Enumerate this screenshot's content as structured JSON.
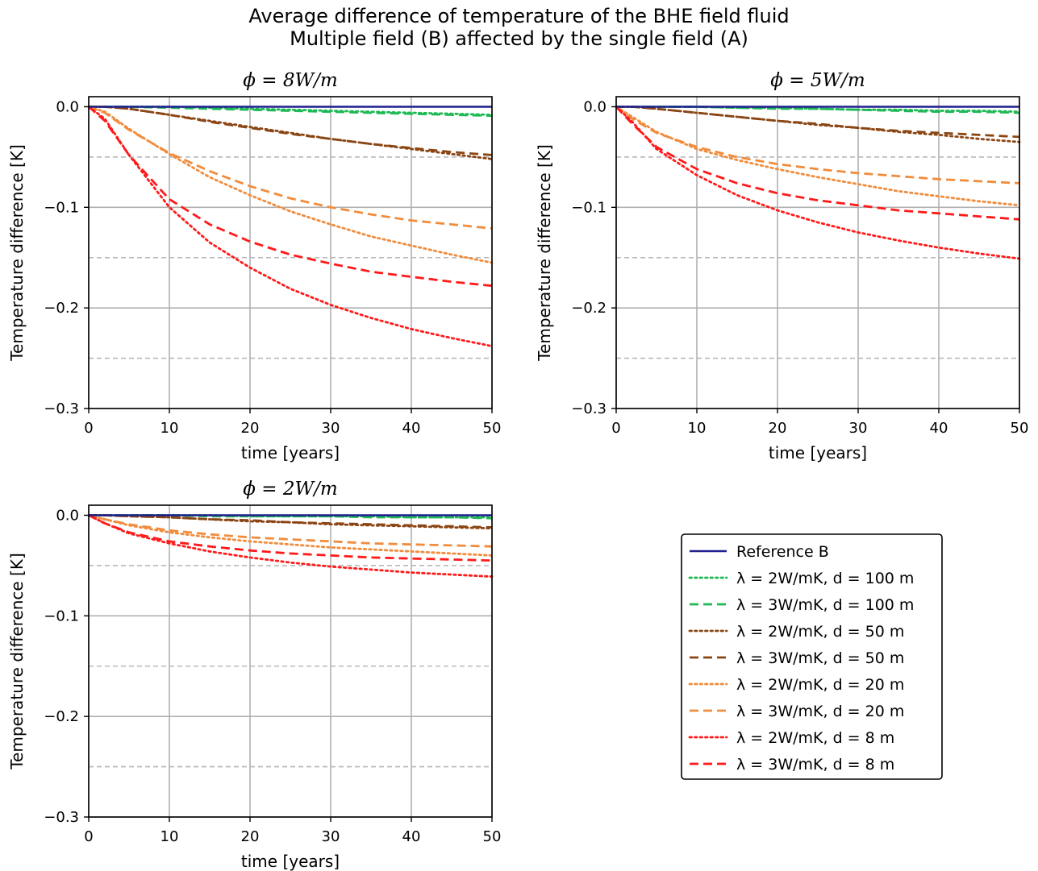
{
  "figure": {
    "title_line1": "Average difference of temperature of the BHE field fluid",
    "title_line2": "Multiple field (B) affected by the single field (A)"
  },
  "colors": {
    "reference": "#1f1f8f",
    "green": "#1db954",
    "brown": "#8b4513",
    "orange": "#f08c3c",
    "red": "#ff1a1a",
    "grid": "#b0b0b0",
    "dashed_ref": "#b8b8b8"
  },
  "legend": {
    "entries": [
      {
        "label": "Reference B",
        "color": "#1f1f8f",
        "style": "solid"
      },
      {
        "label": "λ = 2W/mK, d = 100 m",
        "color": "#1db954",
        "style": "dotted"
      },
      {
        "label": "λ = 3W/mK, d = 100 m",
        "color": "#1db954",
        "style": "dashed"
      },
      {
        "label": "λ = 2W/mK, d = 50 m",
        "color": "#8b4513",
        "style": "dotted"
      },
      {
        "label": "λ = 3W/mK, d = 50 m",
        "color": "#8b4513",
        "style": "dashed"
      },
      {
        "label": "λ = 2W/mK, d = 20 m",
        "color": "#f08c3c",
        "style": "dotted"
      },
      {
        "label": "λ = 3W/mK, d = 20 m",
        "color": "#f08c3c",
        "style": "dashed"
      },
      {
        "label": "λ = 2W/mK, d = 8 m",
        "color": "#ff1a1a",
        "style": "dotted"
      },
      {
        "label": "λ = 3W/mK, d = 8 m",
        "color": "#ff1a1a",
        "style": "dashed"
      }
    ]
  },
  "chart_data": [
    {
      "type": "line",
      "title": "ϕ = 8W/m",
      "xlabel": "time [years]",
      "ylabel": "Temperature difference [K]",
      "xlim": [
        0,
        50
      ],
      "ylim": [
        -0.3,
        0.01
      ],
      "xticks": [
        "0",
        "10",
        "20",
        "30",
        "40",
        "50"
      ],
      "yticks": [
        "0.0",
        "−0.1",
        "−0.2",
        "−0.3"
      ],
      "grid": true,
      "reference_hlines": [
        -0.05,
        -0.15,
        -0.25
      ],
      "x": [
        0,
        2,
        5,
        10,
        15,
        20,
        25,
        30,
        35,
        40,
        45,
        50
      ],
      "series": [
        {
          "name": "Reference B",
          "values": [
            0,
            0,
            0,
            0,
            0,
            0,
            0,
            0,
            0,
            0,
            0,
            0
          ]
        },
        {
          "name": "λ = 2W/mK, d = 100 m",
          "values": [
            0,
            0,
            0,
            0,
            -0.001,
            -0.002,
            -0.003,
            -0.004,
            -0.005,
            -0.006,
            -0.007,
            -0.008
          ]
        },
        {
          "name": "λ = 3W/mK, d = 100 m",
          "values": [
            0,
            0,
            0,
            -0.001,
            -0.002,
            -0.003,
            -0.004,
            -0.005,
            -0.006,
            -0.007,
            -0.008,
            -0.009
          ]
        },
        {
          "name": "λ = 2W/mK, d = 50 m",
          "values": [
            0,
            0,
            -0.002,
            -0.008,
            -0.014,
            -0.02,
            -0.026,
            -0.032,
            -0.037,
            -0.042,
            -0.047,
            -0.052
          ]
        },
        {
          "name": "λ = 3W/mK, d = 50 m",
          "values": [
            0,
            0,
            -0.002,
            -0.008,
            -0.015,
            -0.021,
            -0.027,
            -0.032,
            -0.037,
            -0.041,
            -0.045,
            -0.048
          ]
        },
        {
          "name": "λ = 2W/mK, d = 20 m",
          "values": [
            0,
            -0.005,
            -0.022,
            -0.047,
            -0.07,
            -0.088,
            -0.104,
            -0.117,
            -0.129,
            -0.138,
            -0.147,
            -0.155
          ]
        },
        {
          "name": "λ = 3W/mK, d = 20 m",
          "values": [
            0,
            -0.006,
            -0.023,
            -0.046,
            -0.064,
            -0.079,
            -0.091,
            -0.1,
            -0.107,
            -0.113,
            -0.117,
            -0.121
          ]
        },
        {
          "name": "λ = 2W/mK, d = 8 m",
          "values": [
            0,
            -0.012,
            -0.048,
            -0.1,
            -0.135,
            -0.16,
            -0.181,
            -0.197,
            -0.21,
            -0.221,
            -0.23,
            -0.238
          ]
        },
        {
          "name": "λ = 3W/mK, d = 8 m",
          "values": [
            0,
            -0.014,
            -0.048,
            -0.092,
            -0.117,
            -0.134,
            -0.147,
            -0.156,
            -0.164,
            -0.169,
            -0.174,
            -0.178
          ]
        }
      ]
    },
    {
      "type": "line",
      "title": "ϕ = 5W/m",
      "xlabel": "time [years]",
      "ylabel": "Temperature difference [K]",
      "xlim": [
        0,
        50
      ],
      "ylim": [
        -0.3,
        0.01
      ],
      "xticks": [
        "0",
        "10",
        "20",
        "30",
        "40",
        "50"
      ],
      "yticks": [
        "0.0",
        "−0.1",
        "−0.2",
        "−0.3"
      ],
      "grid": true,
      "reference_hlines": [
        -0.05,
        -0.15,
        -0.25
      ],
      "x": [
        0,
        2,
        5,
        10,
        15,
        20,
        25,
        30,
        35,
        40,
        45,
        50
      ],
      "series": [
        {
          "name": "Reference B",
          "values": [
            0,
            0,
            0,
            0,
            0,
            0,
            0,
            0,
            0,
            0,
            0,
            0
          ]
        },
        {
          "name": "λ = 2W/mK, d = 100 m",
          "values": [
            0,
            0,
            0,
            0,
            -0.001,
            -0.001,
            -0.002,
            -0.003,
            -0.003,
            -0.004,
            -0.004,
            -0.005
          ]
        },
        {
          "name": "λ = 3W/mK, d = 100 m",
          "values": [
            0,
            0,
            0,
            0,
            -0.001,
            -0.002,
            -0.002,
            -0.003,
            -0.004,
            -0.005,
            -0.005,
            -0.006
          ]
        },
        {
          "name": "λ = 2W/mK, d = 50 m",
          "values": [
            0,
            0,
            -0.002,
            -0.006,
            -0.01,
            -0.014,
            -0.018,
            -0.021,
            -0.025,
            -0.028,
            -0.032,
            -0.035
          ]
        },
        {
          "name": "λ = 3W/mK, d = 50 m",
          "values": [
            0,
            0,
            -0.002,
            -0.006,
            -0.01,
            -0.014,
            -0.017,
            -0.021,
            -0.024,
            -0.026,
            -0.028,
            -0.03
          ]
        },
        {
          "name": "λ = 2W/mK, d = 20 m",
          "values": [
            0,
            -0.01,
            -0.025,
            -0.042,
            -0.053,
            -0.062,
            -0.07,
            -0.077,
            -0.084,
            -0.089,
            -0.094,
            -0.098
          ]
        },
        {
          "name": "λ = 3W/mK, d = 20 m",
          "values": [
            0,
            -0.012,
            -0.026,
            -0.04,
            -0.05,
            -0.057,
            -0.062,
            -0.066,
            -0.069,
            -0.072,
            -0.074,
            -0.076
          ]
        },
        {
          "name": "λ = 2W/mK, d = 8 m",
          "values": [
            0,
            -0.015,
            -0.042,
            -0.068,
            -0.088,
            -0.103,
            -0.115,
            -0.125,
            -0.133,
            -0.14,
            -0.146,
            -0.151
          ]
        },
        {
          "name": "λ = 3W/mK, d = 8 m",
          "values": [
            0,
            -0.017,
            -0.04,
            -0.062,
            -0.076,
            -0.086,
            -0.093,
            -0.098,
            -0.103,
            -0.106,
            -0.109,
            -0.112
          ]
        }
      ]
    },
    {
      "type": "line",
      "title": "ϕ = 2W/m",
      "xlabel": "time [years]",
      "ylabel": "Temperature difference [K]",
      "xlim": [
        0,
        50
      ],
      "ylim": [
        -0.3,
        0.01
      ],
      "xticks": [
        "0",
        "10",
        "20",
        "30",
        "40",
        "50"
      ],
      "yticks": [
        "0.0",
        "−0.1",
        "−0.2",
        "−0.3"
      ],
      "grid": true,
      "reference_hlines": [
        -0.05,
        -0.15,
        -0.25
      ],
      "x": [
        0,
        2,
        5,
        10,
        15,
        20,
        25,
        30,
        35,
        40,
        45,
        50
      ],
      "series": [
        {
          "name": "Reference B",
          "values": [
            0,
            0,
            0,
            0,
            0,
            0,
            0,
            0,
            0,
            0,
            0,
            0
          ]
        },
        {
          "name": "λ = 2W/mK, d = 100 m",
          "values": [
            0,
            0,
            0,
            0,
            0,
            -0.001,
            -0.001,
            -0.001,
            -0.001,
            -0.002,
            -0.002,
            -0.002
          ]
        },
        {
          "name": "λ = 3W/mK, d = 100 m",
          "values": [
            0,
            0,
            0,
            0,
            -0.001,
            -0.001,
            -0.001,
            -0.001,
            -0.002,
            -0.002,
            -0.002,
            -0.003
          ]
        },
        {
          "name": "λ = 2W/mK, d = 50 m",
          "values": [
            0,
            0,
            -0.001,
            -0.002,
            -0.004,
            -0.006,
            -0.007,
            -0.009,
            -0.01,
            -0.011,
            -0.012,
            -0.013
          ]
        },
        {
          "name": "λ = 3W/mK, d = 50 m",
          "values": [
            0,
            0,
            -0.001,
            -0.002,
            -0.004,
            -0.005,
            -0.007,
            -0.008,
            -0.009,
            -0.01,
            -0.011,
            -0.012
          ]
        },
        {
          "name": "λ = 2W/mK, d = 20 m",
          "values": [
            0,
            -0.004,
            -0.01,
            -0.017,
            -0.022,
            -0.026,
            -0.029,
            -0.032,
            -0.034,
            -0.036,
            -0.038,
            -0.04
          ]
        },
        {
          "name": "λ = 3W/mK, d = 20 m",
          "values": [
            0,
            -0.004,
            -0.009,
            -0.015,
            -0.019,
            -0.022,
            -0.024,
            -0.026,
            -0.028,
            -0.029,
            -0.03,
            -0.031
          ]
        },
        {
          "name": "λ = 2W/mK, d = 8 m",
          "values": [
            0,
            -0.008,
            -0.018,
            -0.028,
            -0.036,
            -0.042,
            -0.047,
            -0.051,
            -0.054,
            -0.057,
            -0.059,
            -0.061
          ]
        },
        {
          "name": "λ = 3W/mK, d = 8 m",
          "values": [
            0,
            -0.008,
            -0.017,
            -0.026,
            -0.031,
            -0.035,
            -0.038,
            -0.04,
            -0.042,
            -0.043,
            -0.044,
            -0.045
          ]
        }
      ]
    }
  ]
}
